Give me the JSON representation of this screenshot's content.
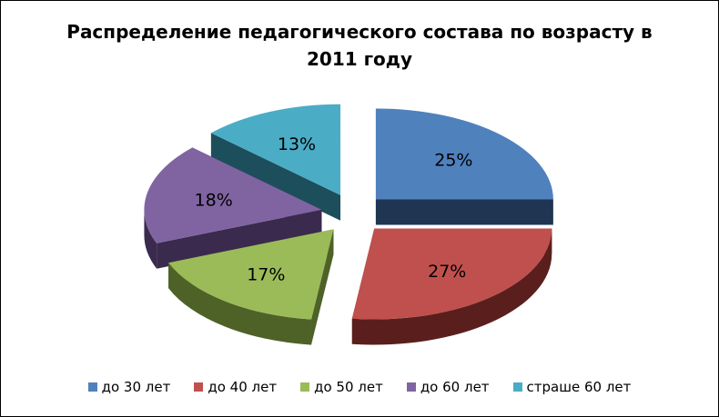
{
  "chart_data": {
    "type": "pie",
    "title_line1": "Распределение педагогического состава по возрасту в",
    "title_line2": "2011 году",
    "slices": [
      {
        "label": "до 30 лет",
        "value": 25,
        "data_label": "25%",
        "color": "#4F81BD",
        "side_color": "#1F3552"
      },
      {
        "label": "до 40 лет",
        "value": 27,
        "data_label": "27%",
        "color": "#C0504D",
        "side_color": "#5A1F1D"
      },
      {
        "label": "до 50 лет",
        "value": 17,
        "data_label": "17%",
        "color": "#9BBB59",
        "side_color": "#4E6228"
      },
      {
        "label": "до 60 лет",
        "value": 18,
        "data_label": "18%",
        "color": "#8064A2",
        "side_color": "#3A2A4E"
      },
      {
        "label": "страше 60 лет",
        "value": 13,
        "data_label": "13%",
        "color": "#4BACC6",
        "side_color": "#1D4E5C"
      }
    ],
    "legend_position": "bottom"
  }
}
